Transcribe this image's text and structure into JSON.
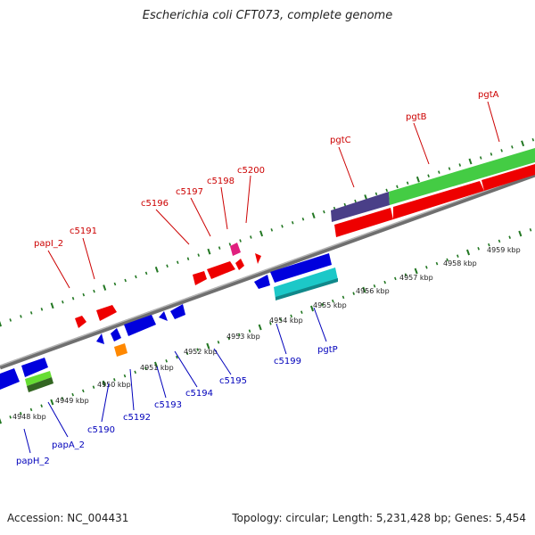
{
  "title": "Escherichia coli CFT073, complete genome",
  "accession": "Accession: NC_004431",
  "topology": "Topology: circular; Length: 5,231,428 bp; Genes: 5,454",
  "colors": {
    "backbone": "#808080",
    "tick": "#227722",
    "upper_label": "#cc0000",
    "lower_label": "#0000bb",
    "kbp_label": "#222222"
  },
  "kbp_labels": [
    "4948 kbp",
    "4949 kbp",
    "4950 kbp",
    "4951 kbp",
    "4952 kbp",
    "4953 kbp",
    "4954 kbp",
    "4955 kbp",
    "4956 kbp",
    "4957 kbp",
    "4958 kbp",
    "4959 kbp"
  ],
  "upper_labels": [
    "papI_2",
    "c5191",
    "c5196",
    "c5197",
    "c5198",
    "c5200",
    "pgtC",
    "pgtB",
    "pgtA"
  ],
  "lower_labels": [
    "papH_2",
    "papA_2",
    "c5190",
    "c5192",
    "c5193",
    "c5194",
    "c5195",
    "c5199",
    "pgtP"
  ]
}
